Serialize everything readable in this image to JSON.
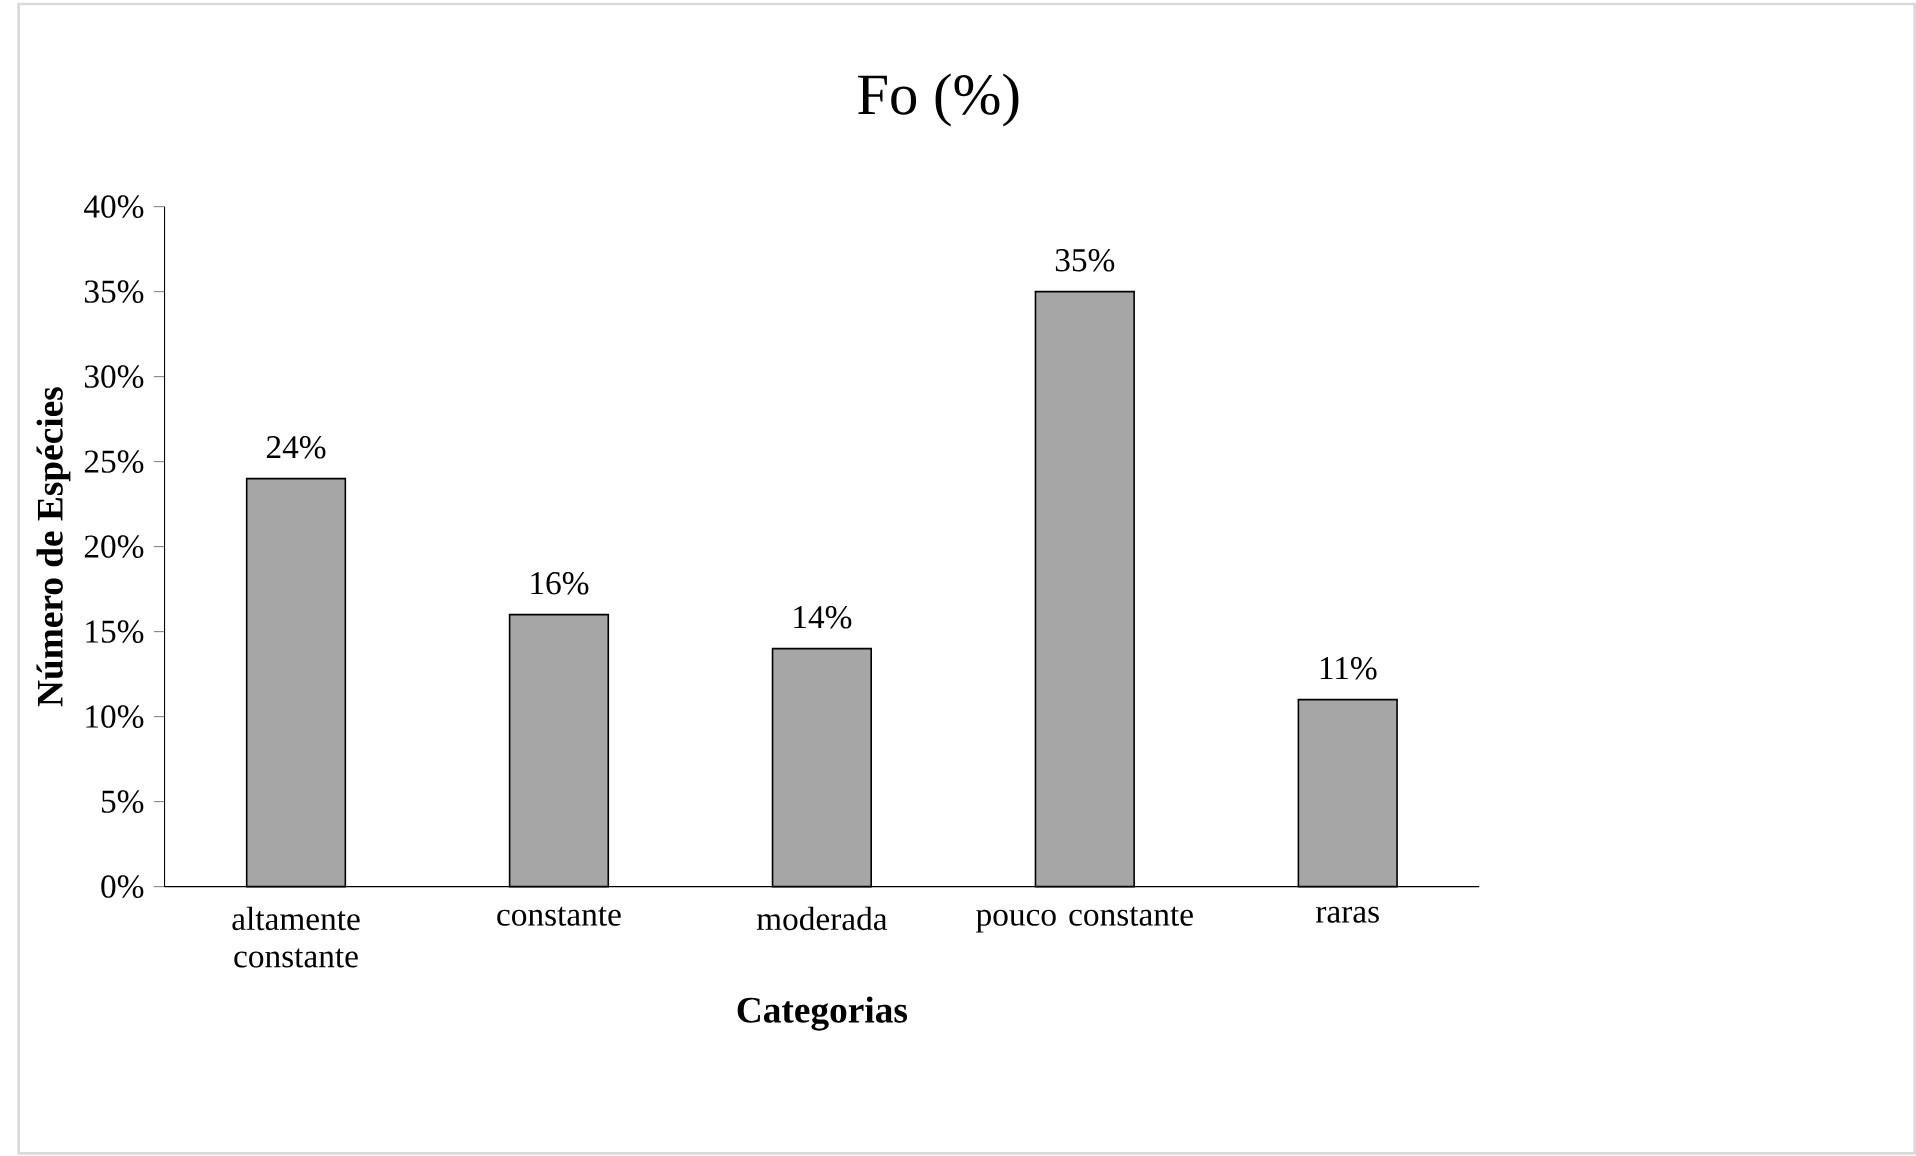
{
  "chart_data": {
    "type": "bar",
    "title": "Fo (%)",
    "xlabel": "Categorias",
    "ylabel": "Número de Espécies",
    "categories": [
      "altamente constante",
      "constante",
      "moderada",
      "pouco constante",
      "raras"
    ],
    "values": [
      24,
      16,
      14,
      35,
      11
    ],
    "value_labels": [
      "24%",
      "16%",
      "14%",
      "35%",
      "11%"
    ],
    "color": "#a6a6a6",
    "ylim": [
      0,
      40
    ],
    "yticks": [
      {
        "value": 0,
        "label": "0%"
      },
      {
        "value": 5,
        "label": "5%"
      },
      {
        "value": 10,
        "label": "10%"
      },
      {
        "value": 15,
        "label": "15%"
      },
      {
        "value": 20,
        "label": "20%"
      },
      {
        "value": 25,
        "label": "25%"
      },
      {
        "value": 30,
        "label": "30%"
      },
      {
        "value": 35,
        "label": "35%"
      },
      {
        "value": 40,
        "label": "40%"
      }
    ]
  }
}
